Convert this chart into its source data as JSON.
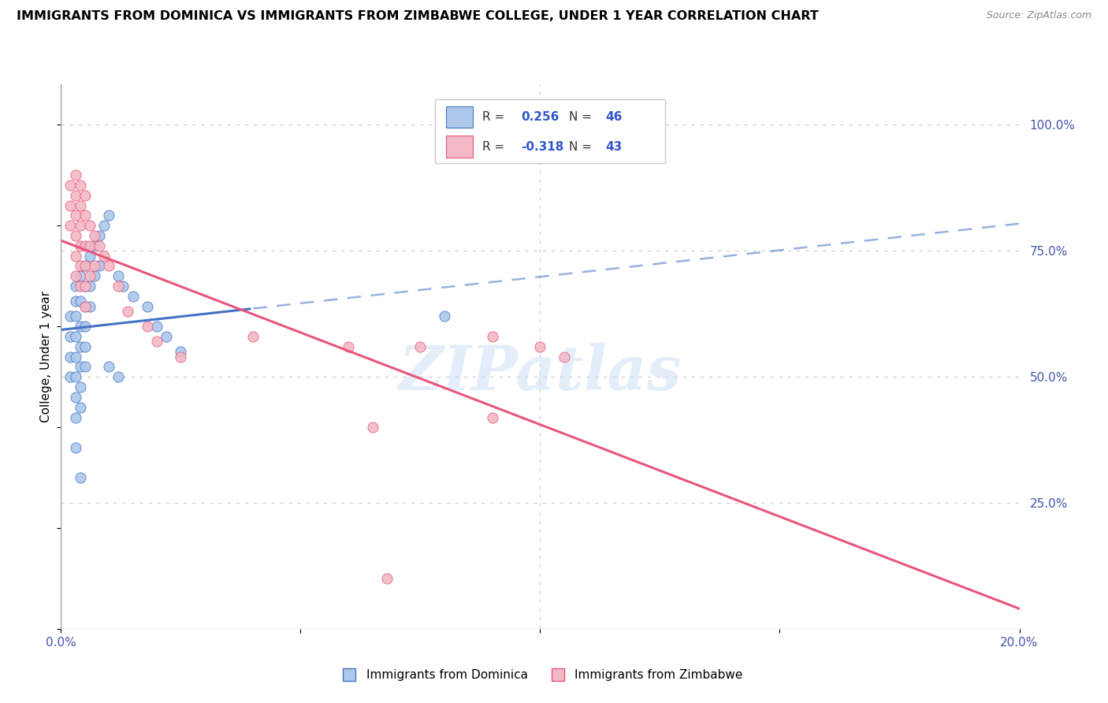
{
  "title": "IMMIGRANTS FROM DOMINICA VS IMMIGRANTS FROM ZIMBABWE COLLEGE, UNDER 1 YEAR CORRELATION CHART",
  "source": "Source: ZipAtlas.com",
  "ylabel": "College, Under 1 year",
  "x_min": 0.0,
  "x_max": 0.2,
  "y_min": 0.0,
  "y_max": 1.08,
  "y_tick_labels_right": [
    "25.0%",
    "50.0%",
    "75.0%",
    "100.0%"
  ],
  "y_tick_vals_right": [
    0.25,
    0.5,
    0.75,
    1.0
  ],
  "R_dominica": 0.256,
  "N_dominica": 46,
  "R_zimbabwe": -0.318,
  "N_zimbabwe": 43,
  "color_dominica": "#adc8ea",
  "color_zimbabwe": "#f2b8c6",
  "line_color_dominica": "#4472c4",
  "line_color_zimbabwe": "#e8567a",
  "watermark": "ZIPatlas",
  "dominica_points": [
    [
      0.002,
      0.62
    ],
    [
      0.002,
      0.58
    ],
    [
      0.002,
      0.54
    ],
    [
      0.002,
      0.5
    ],
    [
      0.003,
      0.68
    ],
    [
      0.003,
      0.65
    ],
    [
      0.003,
      0.62
    ],
    [
      0.003,
      0.58
    ],
    [
      0.003,
      0.54
    ],
    [
      0.003,
      0.5
    ],
    [
      0.003,
      0.46
    ],
    [
      0.003,
      0.42
    ],
    [
      0.004,
      0.7
    ],
    [
      0.004,
      0.65
    ],
    [
      0.004,
      0.6
    ],
    [
      0.004,
      0.56
    ],
    [
      0.004,
      0.52
    ],
    [
      0.004,
      0.48
    ],
    [
      0.004,
      0.44
    ],
    [
      0.005,
      0.72
    ],
    [
      0.005,
      0.68
    ],
    [
      0.005,
      0.64
    ],
    [
      0.005,
      0.6
    ],
    [
      0.005,
      0.56
    ],
    [
      0.005,
      0.52
    ],
    [
      0.006,
      0.74
    ],
    [
      0.006,
      0.68
    ],
    [
      0.006,
      0.64
    ],
    [
      0.007,
      0.76
    ],
    [
      0.007,
      0.7
    ],
    [
      0.008,
      0.78
    ],
    [
      0.008,
      0.72
    ],
    [
      0.009,
      0.8
    ],
    [
      0.01,
      0.82
    ],
    [
      0.012,
      0.7
    ],
    [
      0.013,
      0.68
    ],
    [
      0.015,
      0.66
    ],
    [
      0.018,
      0.64
    ],
    [
      0.02,
      0.6
    ],
    [
      0.022,
      0.58
    ],
    [
      0.025,
      0.55
    ],
    [
      0.003,
      0.36
    ],
    [
      0.004,
      0.3
    ],
    [
      0.01,
      0.52
    ],
    [
      0.012,
      0.5
    ],
    [
      0.08,
      0.62
    ]
  ],
  "zimbabwe_points": [
    [
      0.002,
      0.88
    ],
    [
      0.002,
      0.84
    ],
    [
      0.002,
      0.8
    ],
    [
      0.003,
      0.9
    ],
    [
      0.003,
      0.86
    ],
    [
      0.003,
      0.82
    ],
    [
      0.003,
      0.78
    ],
    [
      0.003,
      0.74
    ],
    [
      0.003,
      0.7
    ],
    [
      0.004,
      0.88
    ],
    [
      0.004,
      0.84
    ],
    [
      0.004,
      0.8
    ],
    [
      0.004,
      0.76
    ],
    [
      0.004,
      0.72
    ],
    [
      0.004,
      0.68
    ],
    [
      0.005,
      0.86
    ],
    [
      0.005,
      0.82
    ],
    [
      0.005,
      0.76
    ],
    [
      0.005,
      0.72
    ],
    [
      0.005,
      0.68
    ],
    [
      0.005,
      0.64
    ],
    [
      0.006,
      0.8
    ],
    [
      0.006,
      0.76
    ],
    [
      0.006,
      0.7
    ],
    [
      0.007,
      0.78
    ],
    [
      0.007,
      0.72
    ],
    [
      0.008,
      0.76
    ],
    [
      0.009,
      0.74
    ],
    [
      0.01,
      0.72
    ],
    [
      0.012,
      0.68
    ],
    [
      0.014,
      0.63
    ],
    [
      0.018,
      0.6
    ],
    [
      0.02,
      0.57
    ],
    [
      0.025,
      0.54
    ],
    [
      0.04,
      0.58
    ],
    [
      0.06,
      0.56
    ],
    [
      0.075,
      0.56
    ],
    [
      0.09,
      0.58
    ],
    [
      0.1,
      0.56
    ],
    [
      0.105,
      0.54
    ],
    [
      0.065,
      0.4
    ],
    [
      0.09,
      0.42
    ],
    [
      0.068,
      0.1
    ]
  ]
}
